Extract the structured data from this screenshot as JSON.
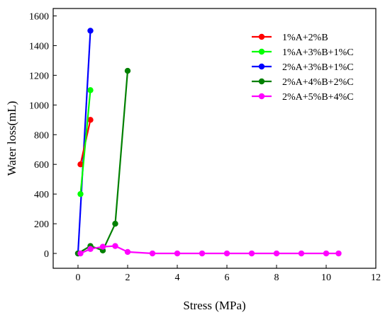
{
  "chart_data": {
    "type": "line",
    "xlabel": "Stress (MPa)",
    "ylabel": "Water loss(mL)",
    "xlim": [
      -1,
      12
    ],
    "ylim": [
      -100,
      1650
    ],
    "xticks": [
      0,
      2,
      4,
      6,
      8,
      10,
      12
    ],
    "yticks": [
      0,
      200,
      400,
      600,
      800,
      1000,
      1200,
      1400,
      1600
    ],
    "grid": false,
    "legend_position": "top-right",
    "series": [
      {
        "name": "1%A+2%B",
        "color": "#ff0000",
        "x": [
          0.1,
          0.5
        ],
        "y": [
          600,
          900
        ]
      },
      {
        "name": "1%A+3%B+1%C",
        "color": "#00ff00",
        "x": [
          0.1,
          0.5
        ],
        "y": [
          400,
          1100
        ]
      },
      {
        "name": "2%A+3%B+1%C",
        "color": "#0000ff",
        "x": [
          0.0,
          0.5
        ],
        "y": [
          0,
          1500
        ]
      },
      {
        "name": "2%A+4%B+2%C",
        "color": "#008000",
        "x": [
          0.0,
          0.5,
          1.0,
          1.5,
          2.0
        ],
        "y": [
          0,
          50,
          20,
          200,
          1230
        ]
      },
      {
        "name": "2%A+5%B+4%C",
        "color": "#ff00ff",
        "x": [
          0.1,
          0.5,
          1.0,
          1.5,
          2.0,
          3.0,
          4.0,
          5.0,
          6.0,
          7.0,
          8.0,
          9.0,
          10.0,
          10.5
        ],
        "y": [
          0,
          30,
          45,
          50,
          10,
          0,
          0,
          0,
          0,
          0,
          0,
          0,
          0,
          0
        ]
      }
    ]
  }
}
